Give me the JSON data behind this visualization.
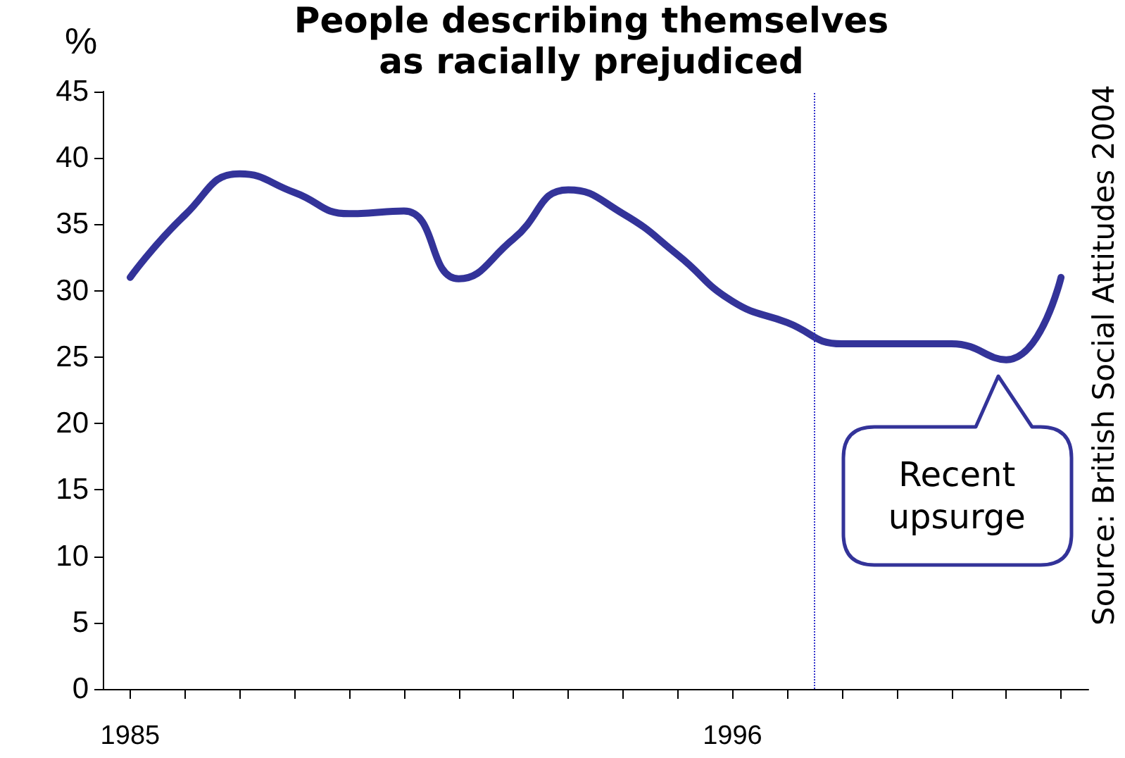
{
  "chart_data": {
    "type": "line",
    "title": "People describing themselves as racially prejudiced",
    "ylabel": "%",
    "annotations": [
      {
        "text": "Recent upsurge",
        "x": 2001,
        "y": 24.8
      },
      "Source:  British Social Attitudes 2004"
    ],
    "x": [
      1985,
      1986,
      1987,
      1988,
      1989,
      1990,
      1991,
      1992,
      1993,
      1994,
      1995,
      1996,
      1997,
      1998,
      1999,
      2000,
      2001,
      2002
    ],
    "series": [
      {
        "color": "#333399",
        "values": [
          31,
          35.7,
          38.8,
          37.4,
          35.8,
          36,
          30.9,
          33.9,
          37.6,
          35.8,
          32.7,
          29.2,
          27.6,
          26,
          26,
          26,
          24.8,
          31
        ]
      }
    ],
    "xlim": [
      1984.5,
      2002.5
    ],
    "xticks": [
      1985,
      {
        "value": 1986,
        "label": null
      },
      {
        "value": 1987,
        "label": null
      },
      {
        "value": 1988,
        "label": null
      },
      {
        "value": 1989,
        "label": null
      },
      {
        "value": 1990,
        "label": null
      },
      {
        "value": 1991,
        "label": null
      },
      {
        "value": 1992,
        "label": null
      },
      {
        "value": 1993,
        "label": null
      },
      {
        "value": 1994,
        "label": null
      },
      {
        "value": 1995,
        "label": null
      },
      1996,
      {
        "value": 1997,
        "label": null
      },
      {
        "value": 1998,
        "label": null
      },
      {
        "value": 1999,
        "label": null
      },
      {
        "value": 2000,
        "label": null
      },
      {
        "value": 2001,
        "label": null
      },
      {
        "value": 2002,
        "label": null
      }
    ],
    "ylim": [
      0,
      45
    ],
    "yticks": [
      0,
      5,
      10,
      15,
      20,
      25,
      30,
      35,
      40,
      45
    ],
    "ref_lines": [
      {
        "axis": "x",
        "value": 1997.5,
        "color": "#3333cc",
        "line_style": "dotted"
      }
    ],
    "marker": "none"
  }
}
